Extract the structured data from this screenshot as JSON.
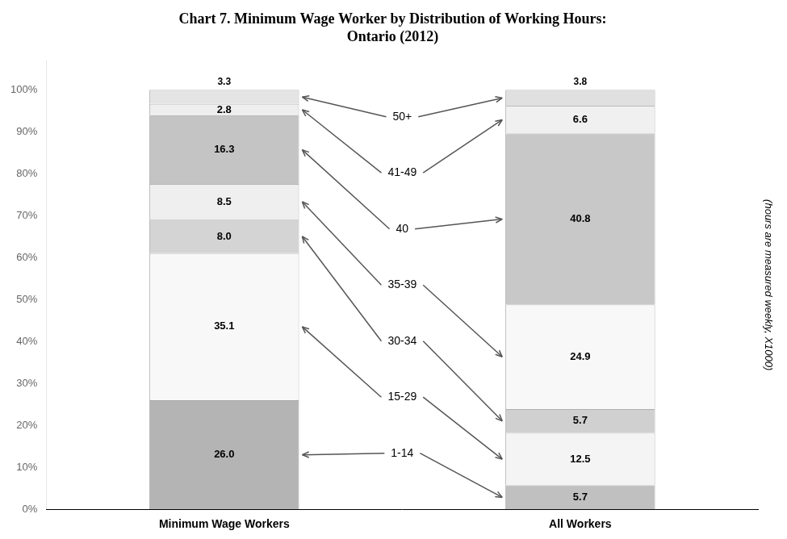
{
  "chart_data": {
    "type": "bar",
    "title": "Chart 7. Minimum Wage Worker by Distribution of Working Hours:\nOntario (2012)",
    "ylabel": "(hours are measured weekly, X1000)",
    "categories": [
      "Minimum Wage Workers",
      "All Workers"
    ],
    "stacked": true,
    "data_labels": true,
    "grid": false,
    "ylim": [
      0,
      107
    ],
    "yticks": [
      {
        "value": 0,
        "label": "0%"
      },
      {
        "value": 10,
        "label": "10%"
      },
      {
        "value": 20,
        "label": "20%"
      },
      {
        "value": 30,
        "label": "30%"
      },
      {
        "value": 40,
        "label": "40%"
      },
      {
        "value": 50,
        "label": "50%"
      },
      {
        "value": 60,
        "label": "60%"
      },
      {
        "value": 70,
        "label": "70%"
      },
      {
        "value": 80,
        "label": "80%"
      },
      {
        "value": 90,
        "label": "90%"
      },
      {
        "value": 100,
        "label": "100%"
      }
    ],
    "series": [
      {
        "name": "1-14",
        "values": [
          26.0,
          5.7
        ],
        "value_labels": [
          "26.0",
          "5.7"
        ],
        "colors": [
          "#b4b4b4",
          "#c0c0c0"
        ]
      },
      {
        "name": "15-29",
        "values": [
          35.1,
          12.5
        ],
        "value_labels": [
          "35.1",
          "12.5"
        ],
        "colors": [
          "#f8f8f8",
          "#f4f4f4"
        ]
      },
      {
        "name": "30-34",
        "values": [
          8.0,
          5.7
        ],
        "value_labels": [
          "8.0",
          "5.7"
        ],
        "colors": [
          "#d4d4d4",
          "#d0d0d0"
        ]
      },
      {
        "name": "35-39",
        "values": [
          8.5,
          24.9
        ],
        "value_labels": [
          "8.5",
          "24.9"
        ],
        "colors": [
          "#efefef",
          "#f8f8f8"
        ]
      },
      {
        "name": "40",
        "values": [
          16.3,
          40.8
        ],
        "value_labels": [
          "16.3",
          "40.8"
        ],
        "colors": [
          "#c4c4c4",
          "#c8c8c8"
        ]
      },
      {
        "name": "41-49",
        "values": [
          2.8,
          6.6
        ],
        "value_labels": [
          "2.8",
          "6.6"
        ],
        "colors": [
          "#eeeeee",
          "#f0f0f0"
        ]
      },
      {
        "name": "50+",
        "values": [
          3.3,
          3.8
        ],
        "value_labels": [
          "3.3",
          "3.8"
        ],
        "colors": [
          "#e4e4e4",
          "#e0e0e0"
        ]
      }
    ]
  }
}
